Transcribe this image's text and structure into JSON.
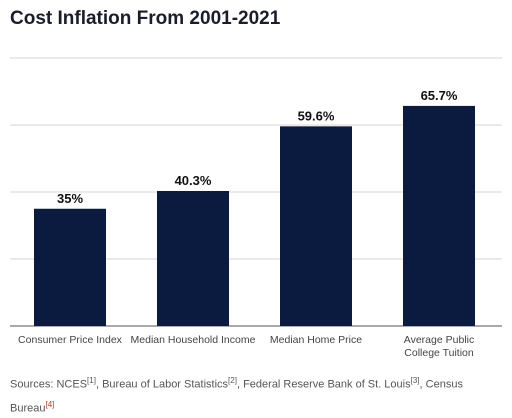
{
  "chart_data": {
    "type": "bar",
    "title": "Cost Inflation From 2001-2021",
    "categories": [
      "Consumer Price Index",
      "Median Household Income",
      "Median Home Price",
      "Average Public College Tuition"
    ],
    "values": [
      35,
      40.3,
      59.6,
      65.7
    ],
    "value_labels": [
      "35%",
      "40.3%",
      "59.6%",
      "65.7%"
    ],
    "color": "#0b1a3f",
    "ylim": [
      0,
      80
    ],
    "yticks": [
      0,
      20,
      40,
      60,
      80
    ],
    "grid": true,
    "sources": {
      "prefix": "Sources:",
      "items": [
        {
          "name": "NCES",
          "ref": "[1]"
        },
        {
          "name": "Bureau of Labor Statistics",
          "ref": "[2]"
        },
        {
          "name": "Federal Reserve Bank of St. Louis",
          "ref": "[3]"
        },
        {
          "name": "Census Bureau",
          "ref": "[4]"
        }
      ]
    }
  }
}
